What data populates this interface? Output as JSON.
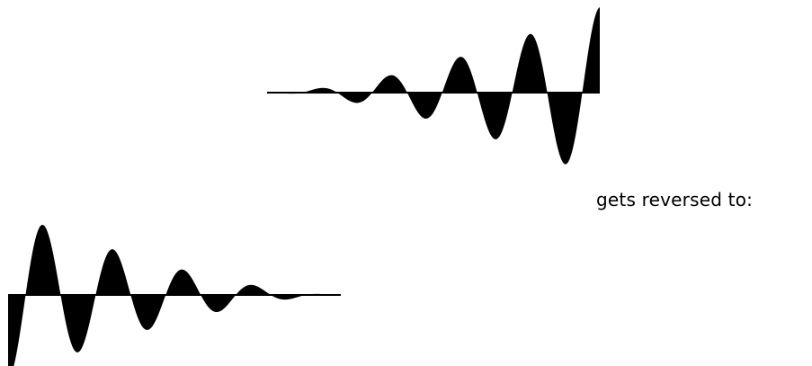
{
  "caption": "gets reversed to:",
  "waveform": {
    "description_type": "decaying/growing sine waveform",
    "fill_color": "#000000",
    "background_color": "#ffffff"
  }
}
